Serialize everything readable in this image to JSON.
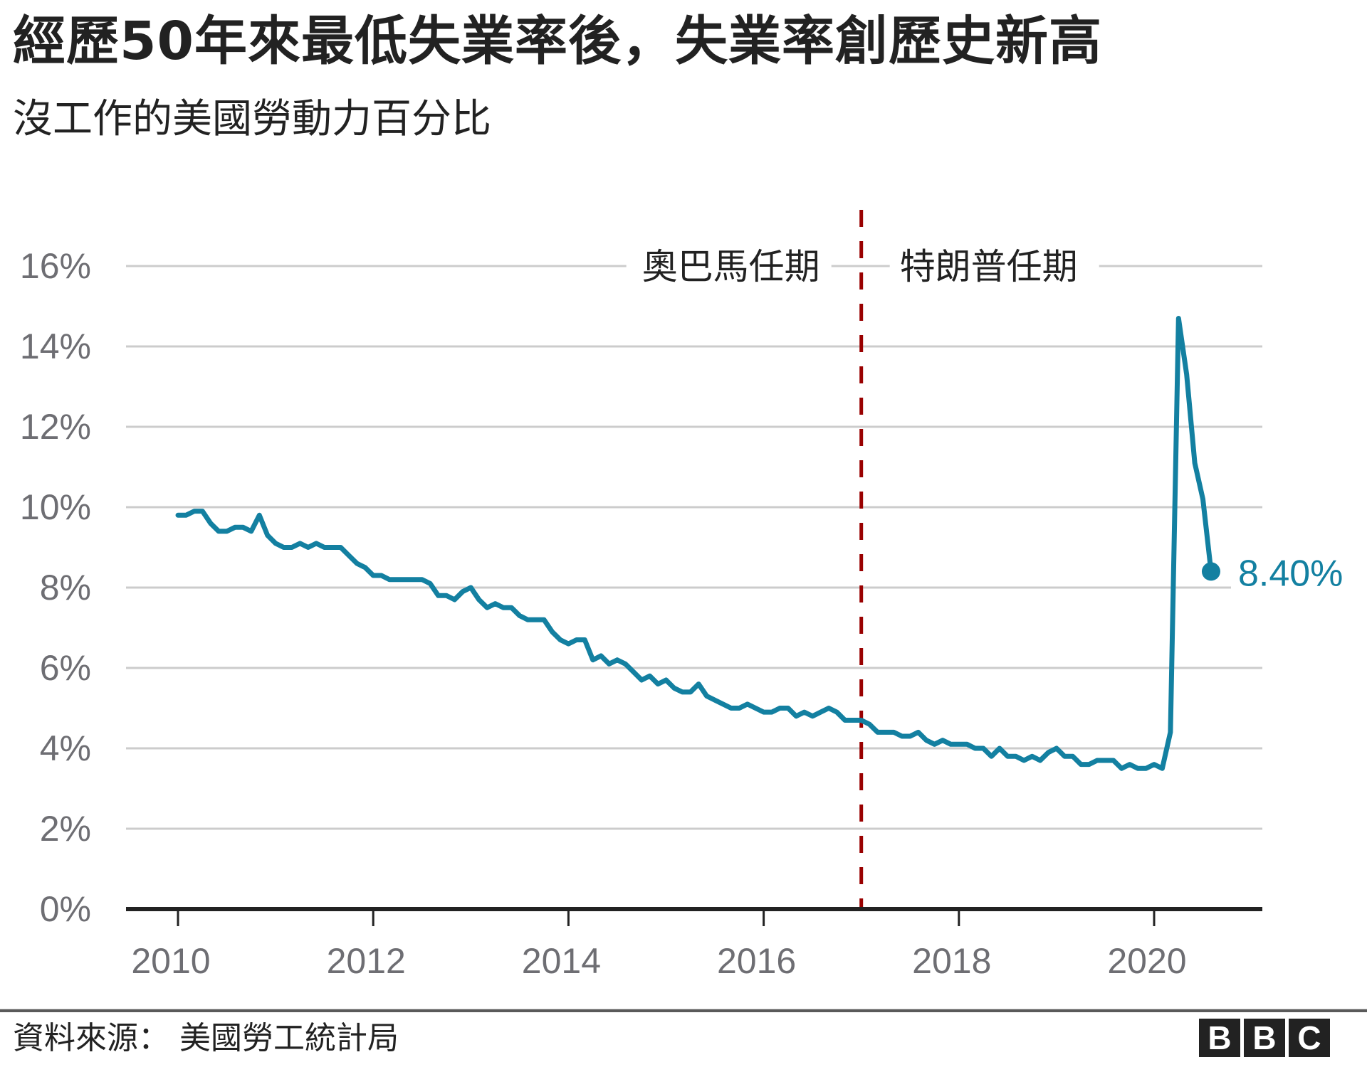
{
  "header": {
    "title": "經歷50年來最低失業率後，失業率創歷史新高",
    "subtitle": "沒工作的美國勞動力百分比"
  },
  "footer": {
    "source": "資料來源：  美國勞工統計局",
    "logo_letters": [
      "B",
      "B",
      "C"
    ]
  },
  "colors": {
    "line": "#1380a1",
    "divider": "#990000",
    "grid": "#cccccc",
    "axis": "#222222",
    "tick_text": "#6e6e73",
    "text": "#222222"
  },
  "chart_data": {
    "type": "line",
    "title": "經歷50年來最低失業率後，失業率創歷史新高",
    "subtitle": "沒工作的美國勞動力百分比",
    "xlabel": "",
    "ylabel": "",
    "ylim": [
      0,
      16
    ],
    "yticks": [
      0,
      2,
      4,
      6,
      8,
      10,
      12,
      14,
      16
    ],
    "ytick_labels": [
      "0%",
      "2%",
      "4%",
      "6%",
      "8%",
      "10%",
      "12%",
      "14%",
      "16%"
    ],
    "xticks": [
      2010,
      2012,
      2014,
      2016,
      2018,
      2020
    ],
    "xtick_labels": [
      "2010",
      "2012",
      "2014",
      "2016",
      "2018",
      "2020"
    ],
    "grid": true,
    "legend": "none",
    "x_start": "2010-01",
    "x_end": "2020-08",
    "frequency": "monthly",
    "series": [
      {
        "name": "失業率",
        "values": [
          9.8,
          9.8,
          9.9,
          9.9,
          9.6,
          9.4,
          9.4,
          9.5,
          9.5,
          9.4,
          9.8,
          9.3,
          9.1,
          9.0,
          9.0,
          9.1,
          9.0,
          9.1,
          9.0,
          9.0,
          9.0,
          8.8,
          8.6,
          8.5,
          8.3,
          8.3,
          8.2,
          8.2,
          8.2,
          8.2,
          8.2,
          8.1,
          7.8,
          7.8,
          7.7,
          7.9,
          8.0,
          7.7,
          7.5,
          7.6,
          7.5,
          7.5,
          7.3,
          7.2,
          7.2,
          7.2,
          6.9,
          6.7,
          6.6,
          6.7,
          6.7,
          6.2,
          6.3,
          6.1,
          6.2,
          6.1,
          5.9,
          5.7,
          5.8,
          5.6,
          5.7,
          5.5,
          5.4,
          5.4,
          5.6,
          5.3,
          5.2,
          5.1,
          5.0,
          5.0,
          5.1,
          5.0,
          4.9,
          4.9,
          5.0,
          5.0,
          4.8,
          4.9,
          4.8,
          4.9,
          5.0,
          4.9,
          4.7,
          4.7,
          4.7,
          4.6,
          4.4,
          4.4,
          4.4,
          4.3,
          4.3,
          4.4,
          4.2,
          4.1,
          4.2,
          4.1,
          4.1,
          4.1,
          4.0,
          4.0,
          3.8,
          4.0,
          3.8,
          3.8,
          3.7,
          3.8,
          3.7,
          3.9,
          4.0,
          3.8,
          3.8,
          3.6,
          3.6,
          3.7,
          3.7,
          3.7,
          3.5,
          3.6,
          3.5,
          3.5,
          3.6,
          3.5,
          4.4,
          14.7,
          13.3,
          11.1,
          10.2,
          8.4
        ]
      }
    ],
    "annotations": [
      {
        "type": "vertical_line",
        "x": "2017-01",
        "style": "dashed",
        "color": "#990000"
      },
      {
        "type": "text",
        "text": "奧巴馬任期",
        "position": "left of divider"
      },
      {
        "type": "text",
        "text": "特朗普任期",
        "position": "right of divider"
      },
      {
        "type": "end_label",
        "text": "8.40%",
        "x": "2020-08",
        "y": 8.4
      }
    ]
  },
  "plot": {
    "period_left": "奧巴馬任期",
    "period_right": "特朗普任期",
    "end_label": "8.40%"
  }
}
